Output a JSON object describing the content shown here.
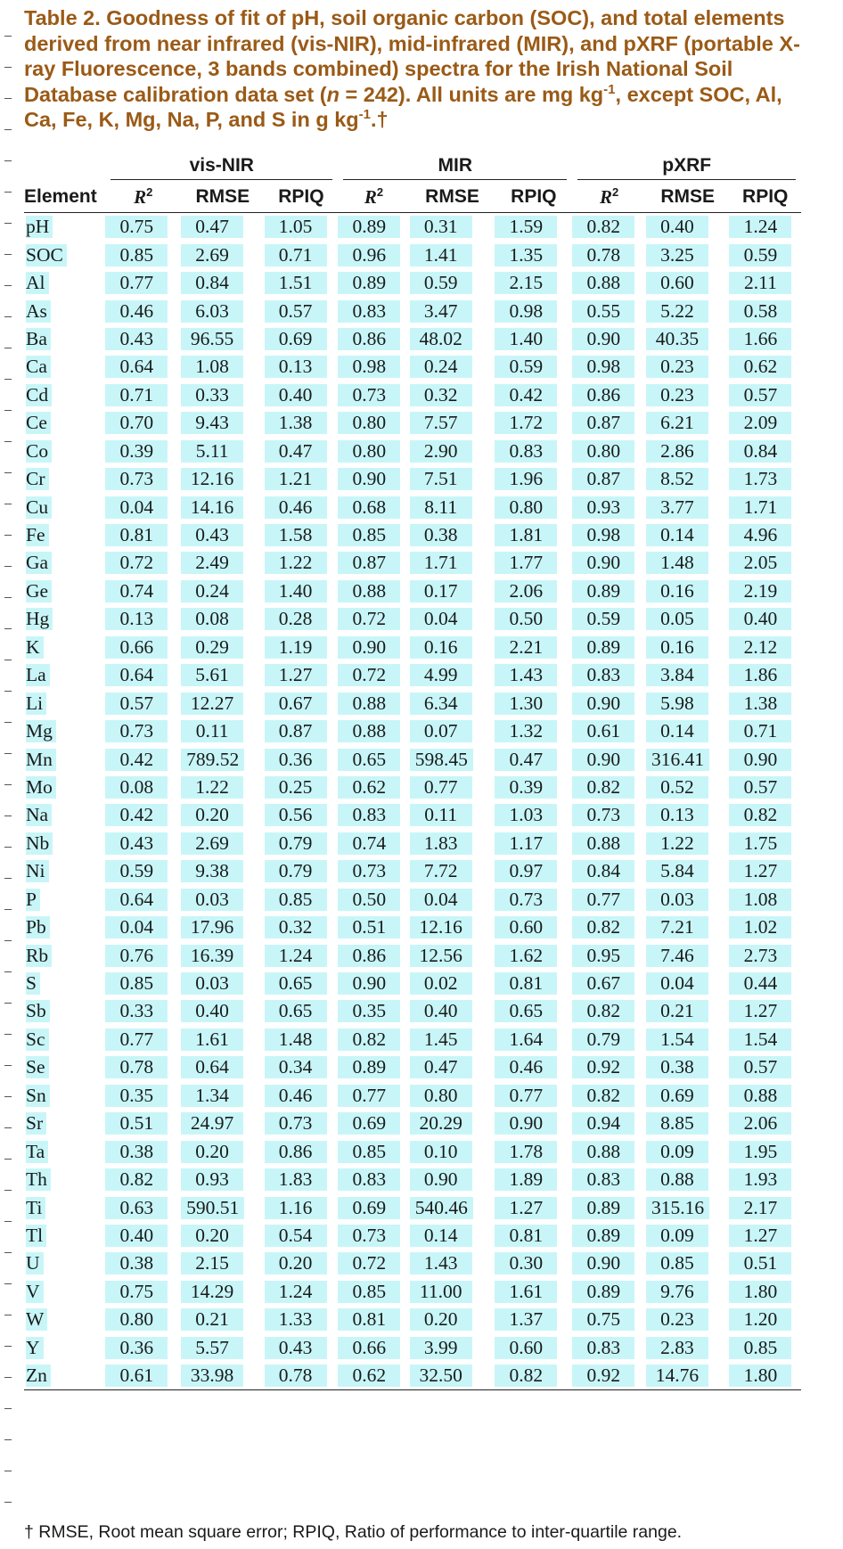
{
  "caption": {
    "part1": "Table 2. Goodness of fit of pH, soil organic carbon (SOC), and total elements derived from near infrared (vis-NIR), mid-infrared (MIR), and pXRF (portable X-ray Fluorescence, 3 bands combined) spectra for the Irish National Soil Database calibration data set (",
    "n_symbol": "n",
    "part2": " = 242). All units are mg kg",
    "sup1": "-1",
    "part3": ", except SOC, Al, Ca, Fe, K, Mg, Na, P, and S in g kg",
    "sup2": "-1",
    "part4": ".†"
  },
  "groups": [
    "vis-NIR",
    "MIR",
    "pXRF"
  ],
  "columns": {
    "element": "Element",
    "r2_base": "R",
    "r2_sup": "2",
    "rmse": "RMSE",
    "rpiq": "RPIQ"
  },
  "rows": [
    [
      "pH",
      "0.75",
      "0.47",
      "1.05",
      "0.89",
      "0.31",
      "1.59",
      "0.82",
      "0.40",
      "1.24"
    ],
    [
      "SOC",
      "0.85",
      "2.69",
      "0.71",
      "0.96",
      "1.41",
      "1.35",
      "0.78",
      "3.25",
      "0.59"
    ],
    [
      "Al",
      "0.77",
      "0.84",
      "1.51",
      "0.89",
      "0.59",
      "2.15",
      "0.88",
      "0.60",
      "2.11"
    ],
    [
      "As",
      "0.46",
      "6.03",
      "0.57",
      "0.83",
      "3.47",
      "0.98",
      "0.55",
      "5.22",
      "0.58"
    ],
    [
      "Ba",
      "0.43",
      "96.55",
      "0.69",
      "0.86",
      "48.02",
      "1.40",
      "0.90",
      "40.35",
      "1.66"
    ],
    [
      "Ca",
      "0.64",
      "1.08",
      "0.13",
      "0.98",
      "0.24",
      "0.59",
      "0.98",
      "0.23",
      "0.62"
    ],
    [
      "Cd",
      "0.71",
      "0.33",
      "0.40",
      "0.73",
      "0.32",
      "0.42",
      "0.86",
      "0.23",
      "0.57"
    ],
    [
      "Ce",
      "0.70",
      "9.43",
      "1.38",
      "0.80",
      "7.57",
      "1.72",
      "0.87",
      "6.21",
      "2.09"
    ],
    [
      "Co",
      "0.39",
      "5.11",
      "0.47",
      "0.80",
      "2.90",
      "0.83",
      "0.80",
      "2.86",
      "0.84"
    ],
    [
      "Cr",
      "0.73",
      "12.16",
      "1.21",
      "0.90",
      "7.51",
      "1.96",
      "0.87",
      "8.52",
      "1.73"
    ],
    [
      "Cu",
      "0.04",
      "14.16",
      "0.46",
      "0.68",
      "8.11",
      "0.80",
      "0.93",
      "3.77",
      "1.71"
    ],
    [
      "Fe",
      "0.81",
      "0.43",
      "1.58",
      "0.85",
      "0.38",
      "1.81",
      "0.98",
      "0.14",
      "4.96"
    ],
    [
      "Ga",
      "0.72",
      "2.49",
      "1.22",
      "0.87",
      "1.71",
      "1.77",
      "0.90",
      "1.48",
      "2.05"
    ],
    [
      "Ge",
      "0.74",
      "0.24",
      "1.40",
      "0.88",
      "0.17",
      "2.06",
      "0.89",
      "0.16",
      "2.19"
    ],
    [
      "Hg",
      "0.13",
      "0.08",
      "0.28",
      "0.72",
      "0.04",
      "0.50",
      "0.59",
      "0.05",
      "0.40"
    ],
    [
      "K",
      "0.66",
      "0.29",
      "1.19",
      "0.90",
      "0.16",
      "2.21",
      "0.89",
      "0.16",
      "2.12"
    ],
    [
      "La",
      "0.64",
      "5.61",
      "1.27",
      "0.72",
      "4.99",
      "1.43",
      "0.83",
      "3.84",
      "1.86"
    ],
    [
      "Li",
      "0.57",
      "12.27",
      "0.67",
      "0.88",
      "6.34",
      "1.30",
      "0.90",
      "5.98",
      "1.38"
    ],
    [
      "Mg",
      "0.73",
      "0.11",
      "0.87",
      "0.88",
      "0.07",
      "1.32",
      "0.61",
      "0.14",
      "0.71"
    ],
    [
      "Mn",
      "0.42",
      "789.52",
      "0.36",
      "0.65",
      "598.45",
      "0.47",
      "0.90",
      "316.41",
      "0.90"
    ],
    [
      "Mo",
      "0.08",
      "1.22",
      "0.25",
      "0.62",
      "0.77",
      "0.39",
      "0.82",
      "0.52",
      "0.57"
    ],
    [
      "Na",
      "0.42",
      "0.20",
      "0.56",
      "0.83",
      "0.11",
      "1.03",
      "0.73",
      "0.13",
      "0.82"
    ],
    [
      "Nb",
      "0.43",
      "2.69",
      "0.79",
      "0.74",
      "1.83",
      "1.17",
      "0.88",
      "1.22",
      "1.75"
    ],
    [
      "Ni",
      "0.59",
      "9.38",
      "0.79",
      "0.73",
      "7.72",
      "0.97",
      "0.84",
      "5.84",
      "1.27"
    ],
    [
      "P",
      "0.64",
      "0.03",
      "0.85",
      "0.50",
      "0.04",
      "0.73",
      "0.77",
      "0.03",
      "1.08"
    ],
    [
      "Pb",
      "0.04",
      "17.96",
      "0.32",
      "0.51",
      "12.16",
      "0.60",
      "0.82",
      "7.21",
      "1.02"
    ],
    [
      "Rb",
      "0.76",
      "16.39",
      "1.24",
      "0.86",
      "12.56",
      "1.62",
      "0.95",
      "7.46",
      "2.73"
    ],
    [
      "S",
      "0.85",
      "0.03",
      "0.65",
      "0.90",
      "0.02",
      "0.81",
      "0.67",
      "0.04",
      "0.44"
    ],
    [
      "Sb",
      "0.33",
      "0.40",
      "0.65",
      "0.35",
      "0.40",
      "0.65",
      "0.82",
      "0.21",
      "1.27"
    ],
    [
      "Sc",
      "0.77",
      "1.61",
      "1.48",
      "0.82",
      "1.45",
      "1.64",
      "0.79",
      "1.54",
      "1.54"
    ],
    [
      "Se",
      "0.78",
      "0.64",
      "0.34",
      "0.89",
      "0.47",
      "0.46",
      "0.92",
      "0.38",
      "0.57"
    ],
    [
      "Sn",
      "0.35",
      "1.34",
      "0.46",
      "0.77",
      "0.80",
      "0.77",
      "0.82",
      "0.69",
      "0.88"
    ],
    [
      "Sr",
      "0.51",
      "24.97",
      "0.73",
      "0.69",
      "20.29",
      "0.90",
      "0.94",
      "8.85",
      "2.06"
    ],
    [
      "Ta",
      "0.38",
      "0.20",
      "0.86",
      "0.85",
      "0.10",
      "1.78",
      "0.88",
      "0.09",
      "1.95"
    ],
    [
      "Th",
      "0.82",
      "0.93",
      "1.83",
      "0.83",
      "0.90",
      "1.89",
      "0.83",
      "0.88",
      "1.93"
    ],
    [
      "Ti",
      "0.63",
      "590.51",
      "1.16",
      "0.69",
      "540.46",
      "1.27",
      "0.89",
      "315.16",
      "2.17"
    ],
    [
      "Tl",
      "0.40",
      "0.20",
      "0.54",
      "0.73",
      "0.14",
      "0.81",
      "0.89",
      "0.09",
      "1.27"
    ],
    [
      "U",
      "0.38",
      "2.15",
      "0.20",
      "0.72",
      "1.43",
      "0.30",
      "0.90",
      "0.85",
      "0.51"
    ],
    [
      "V",
      "0.75",
      "14.29",
      "1.24",
      "0.85",
      "11.00",
      "1.61",
      "0.89",
      "9.76",
      "1.80"
    ],
    [
      "W",
      "0.80",
      "0.21",
      "1.33",
      "0.81",
      "0.20",
      "1.37",
      "0.75",
      "0.23",
      "1.20"
    ],
    [
      "Y",
      "0.36",
      "5.57",
      "0.43",
      "0.66",
      "3.99",
      "0.60",
      "0.83",
      "2.83",
      "0.85"
    ],
    [
      "Zn",
      "0.61",
      "33.98",
      "0.78",
      "0.62",
      "32.50",
      "0.82",
      "0.92",
      "14.76",
      "1.80"
    ]
  ],
  "footnote": "† RMSE, Root mean square error; RPIQ, Ratio of performance to inter-quartile range.",
  "colors": {
    "caption": "#9a5a16",
    "highlight": "#c8f6f8",
    "text": "#1a1a1a"
  }
}
